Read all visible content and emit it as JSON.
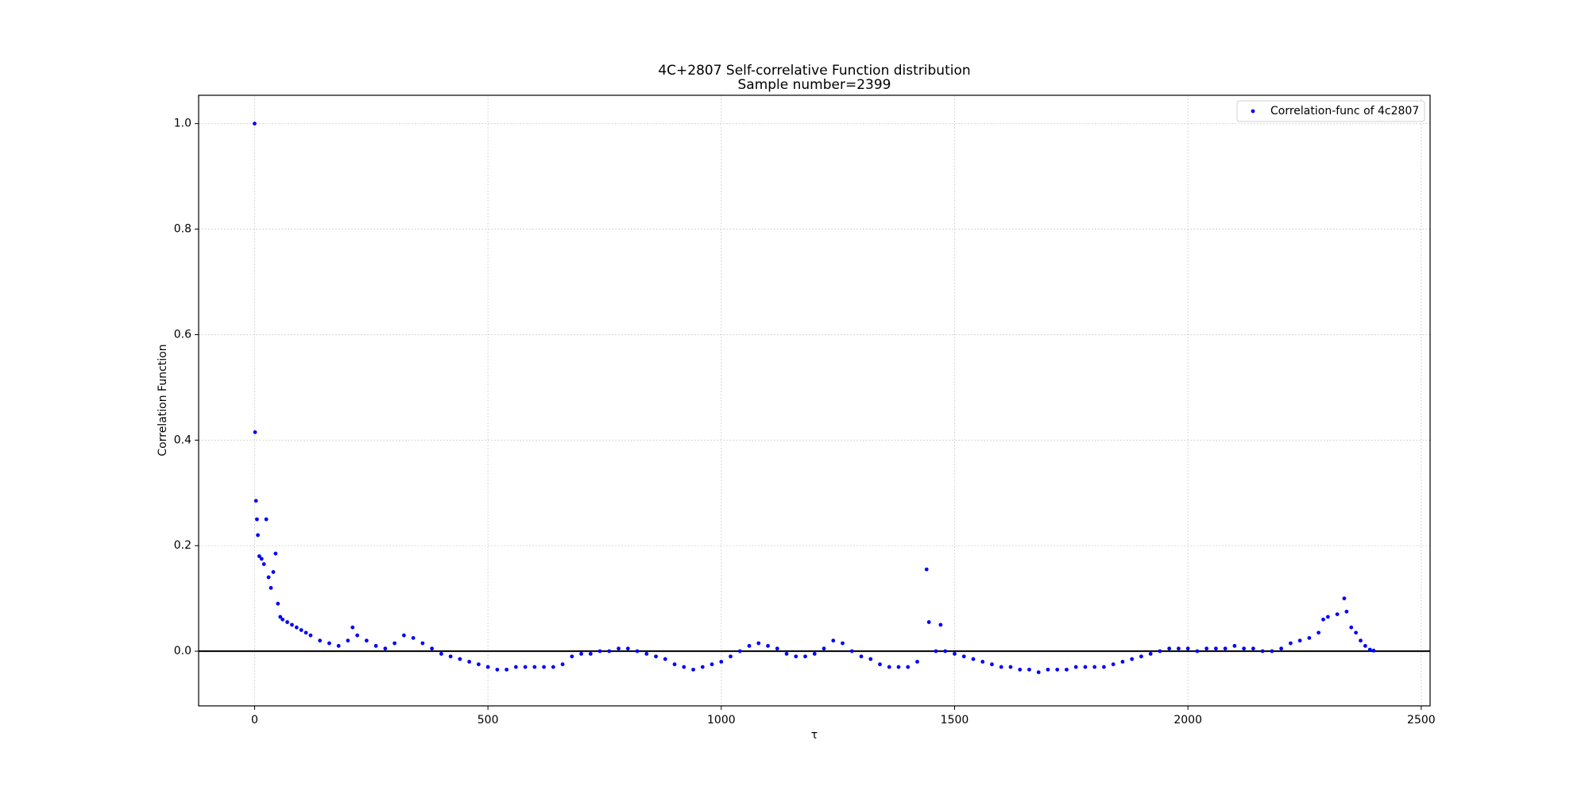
{
  "chart_data": {
    "type": "scatter",
    "title": "4C+2807 Self-correlative Function distribution",
    "subtitle": "Sample number=2399",
    "x_label": "τ",
    "y_label": "Correlation Function",
    "xlim": [
      -119.95,
      2518.95
    ],
    "ylim": [
      -0.1037,
      1.0537
    ],
    "xticks": [
      0,
      500,
      1000,
      1500,
      2000,
      2500
    ],
    "yticks": [
      {
        "value": 0,
        "label": "0.0"
      },
      {
        "value": 0.2,
        "label": "0.2"
      },
      {
        "value": 0.4,
        "label": "0.4"
      },
      {
        "value": 0.6,
        "label": "0.6"
      },
      {
        "value": 0.8,
        "label": "0.8"
      },
      {
        "value": 1,
        "label": "1.0"
      }
    ],
    "grid": true,
    "legend": "upper right",
    "axhline": 0,
    "series": [
      {
        "name": "Correlation-func of 4c2807",
        "color": "#0000ff",
        "x": [
          0,
          1,
          3,
          5,
          7,
          10,
          15,
          20,
          25,
          30,
          35,
          40,
          45,
          50,
          55,
          60,
          70,
          80,
          90,
          100,
          110,
          120,
          140,
          160,
          180,
          200,
          210,
          220,
          240,
          260,
          280,
          300,
          320,
          340,
          360,
          380,
          400,
          420,
          440,
          460,
          480,
          500,
          520,
          540,
          560,
          580,
          600,
          620,
          640,
          660,
          680,
          700,
          720,
          740,
          760,
          780,
          800,
          820,
          840,
          860,
          880,
          900,
          920,
          940,
          960,
          980,
          1000,
          1020,
          1040,
          1060,
          1080,
          1100,
          1120,
          1140,
          1160,
          1180,
          1200,
          1220,
          1240,
          1260,
          1280,
          1300,
          1320,
          1340,
          1360,
          1380,
          1400,
          1420,
          1440,
          1445,
          1460,
          1470,
          1480,
          1500,
          1520,
          1540,
          1560,
          1580,
          1600,
          1620,
          1640,
          1660,
          1680,
          1700,
          1720,
          1740,
          1760,
          1780,
          1800,
          1820,
          1840,
          1860,
          1880,
          1900,
          1920,
          1940,
          1960,
          1980,
          2000,
          2020,
          2040,
          2060,
          2080,
          2100,
          2120,
          2140,
          2160,
          2180,
          2200,
          2220,
          2240,
          2260,
          2280,
          2290,
          2300,
          2320,
          2335,
          2340,
          2350,
          2360,
          2370,
          2380,
          2390,
          2398
        ],
        "values": [
          1.0,
          0.415,
          0.285,
          0.25,
          0.22,
          0.18,
          0.175,
          0.165,
          0.25,
          0.14,
          0.12,
          0.15,
          0.185,
          0.09,
          0.065,
          0.06,
          0.055,
          0.05,
          0.045,
          0.04,
          0.035,
          0.03,
          0.02,
          0.015,
          0.01,
          0.02,
          0.045,
          0.03,
          0.02,
          0.01,
          0.005,
          0.015,
          0.03,
          0.025,
          0.015,
          0.005,
          -0.005,
          -0.01,
          -0.015,
          -0.02,
          -0.025,
          -0.03,
          -0.035,
          -0.035,
          -0.03,
          -0.03,
          -0.03,
          -0.03,
          -0.03,
          -0.025,
          -0.01,
          -0.005,
          -0.005,
          0.0,
          0.0,
          0.005,
          0.005,
          0.0,
          -0.005,
          -0.01,
          -0.015,
          -0.025,
          -0.03,
          -0.035,
          -0.03,
          -0.025,
          -0.02,
          -0.01,
          0.0,
          0.01,
          0.015,
          0.01,
          0.005,
          -0.005,
          -0.01,
          -0.01,
          -0.005,
          0.005,
          0.02,
          0.015,
          0.0,
          -0.01,
          -0.015,
          -0.025,
          -0.03,
          -0.03,
          -0.03,
          -0.02,
          0.155,
          0.055,
          0.0,
          0.05,
          0.0,
          -0.005,
          -0.01,
          -0.015,
          -0.02,
          -0.025,
          -0.03,
          -0.03,
          -0.035,
          -0.035,
          -0.04,
          -0.035,
          -0.035,
          -0.035,
          -0.03,
          -0.03,
          -0.03,
          -0.03,
          -0.025,
          -0.02,
          -0.015,
          -0.01,
          -0.005,
          0.0,
          0.005,
          0.005,
          0.005,
          0.0,
          0.005,
          0.005,
          0.005,
          0.01,
          0.005,
          0.005,
          0.0,
          0.0,
          0.005,
          0.015,
          0.02,
          0.025,
          0.035,
          0.06,
          0.065,
          0.07,
          0.1,
          0.075,
          0.045,
          0.035,
          0.02,
          0.01,
          0.003,
          0.001
        ]
      }
    ]
  }
}
